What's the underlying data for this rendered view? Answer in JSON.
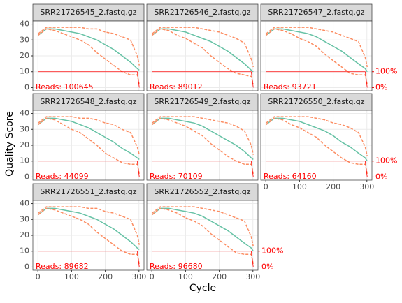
{
  "xlabel": "Cycle",
  "ylabel": "Quality Score",
  "chart_data": [
    {
      "type": "line",
      "title": "SRR21726545_2.fastq.gz",
      "annotation": "Reads:  100645",
      "x": [
        1,
        25,
        50,
        75,
        100,
        125,
        150,
        175,
        200,
        225,
        250,
        275,
        295,
        301
      ],
      "series": [
        {
          "color": "#66c2a5",
          "values": [
            33,
            37,
            37,
            36,
            35,
            34,
            32,
            30,
            27,
            24,
            20,
            16,
            12,
            11
          ]
        },
        {
          "color": "#fc8d62",
          "dashed": true,
          "values": [
            34,
            38,
            38,
            38,
            38,
            38,
            37,
            37,
            35,
            34,
            32,
            30,
            20,
            14
          ]
        },
        {
          "color": "#fc8d62",
          "dashed": true,
          "values": [
            33,
            37,
            36,
            34,
            32,
            30,
            27,
            22,
            18,
            14,
            10,
            8,
            8,
            2
          ]
        },
        {
          "color": "#ff0000",
          "axis": "y2",
          "values": [
            100,
            100,
            100,
            100,
            100,
            100,
            100,
            100,
            100,
            100,
            100,
            100,
            100,
            0
          ]
        }
      ],
      "xlim": [
        -15,
        315
      ],
      "xticks": [
        0,
        100,
        200,
        300
      ],
      "ylim": [
        -2,
        42
      ],
      "yticks": [
        0,
        10,
        20,
        30,
        40
      ],
      "y2lim": [
        -20,
        420
      ]
    },
    {
      "type": "line",
      "title": "SRR21726546_2.fastq.gz",
      "annotation": "Reads:  89012",
      "x": [
        1,
        25,
        50,
        75,
        100,
        125,
        150,
        175,
        200,
        225,
        250,
        275,
        295,
        301
      ],
      "series": [
        {
          "color": "#66c2a5",
          "values": [
            33,
            37,
            37,
            36,
            35,
            33,
            31,
            29,
            26,
            23,
            19,
            15,
            11,
            10
          ]
        },
        {
          "color": "#fc8d62",
          "dashed": true,
          "values": [
            34,
            38,
            38,
            38,
            38,
            38,
            37,
            36,
            35,
            33,
            31,
            28,
            18,
            13
          ]
        },
        {
          "color": "#fc8d62",
          "dashed": true,
          "values": [
            33,
            37,
            36,
            33,
            31,
            28,
            25,
            20,
            16,
            12,
            9,
            8,
            7,
            2
          ]
        },
        {
          "color": "#ff0000",
          "axis": "y2",
          "values": [
            100,
            100,
            100,
            100,
            100,
            100,
            100,
            100,
            100,
            100,
            100,
            100,
            100,
            0
          ]
        }
      ],
      "xlim": [
        -15,
        315
      ],
      "xticks": [
        0,
        100,
        200,
        300
      ],
      "ylim": [
        -2,
        42
      ],
      "yticks": [
        0,
        10,
        20,
        30,
        40
      ],
      "y2lim": [
        -20,
        420
      ]
    },
    {
      "type": "line",
      "title": "SRR21726547_2.fastq.gz",
      "annotation": "Reads:  93721",
      "x": [
        1,
        25,
        50,
        75,
        100,
        125,
        150,
        175,
        200,
        225,
        250,
        275,
        295,
        301
      ],
      "series": [
        {
          "color": "#66c2a5",
          "values": [
            33,
            37,
            37,
            36,
            35,
            34,
            32,
            29,
            26,
            23,
            19,
            15,
            12,
            10
          ]
        },
        {
          "color": "#fc8d62",
          "dashed": true,
          "values": [
            34,
            38,
            38,
            38,
            38,
            38,
            37,
            36,
            35,
            33,
            31,
            29,
            19,
            13
          ]
        },
        {
          "color": "#fc8d62",
          "dashed": true,
          "values": [
            33,
            37,
            36,
            34,
            31,
            29,
            26,
            21,
            17,
            13,
            9,
            8,
            8,
            2
          ]
        },
        {
          "color": "#ff0000",
          "axis": "y2",
          "values": [
            100,
            100,
            100,
            100,
            100,
            100,
            100,
            100,
            100,
            100,
            100,
            100,
            100,
            0
          ]
        }
      ],
      "xlim": [
        -15,
        315
      ],
      "xticks": [
        0,
        100,
        200,
        300
      ],
      "ylim": [
        -2,
        42
      ],
      "yticks": [
        0,
        10,
        20,
        30,
        40
      ],
      "y2lim": [
        -20,
        420
      ],
      "y2ticks": [
        {
          "value": 0,
          "label": "0%"
        },
        {
          "value": 100,
          "label": "100%"
        }
      ]
    },
    {
      "type": "line",
      "title": "SRR21726548_2.fastq.gz",
      "annotation": "Reads:  44099",
      "x": [
        1,
        25,
        50,
        75,
        100,
        125,
        150,
        175,
        200,
        225,
        250,
        275,
        295,
        301
      ],
      "series": [
        {
          "color": "#66c2a5",
          "values": [
            33,
            37,
            37,
            36,
            35,
            33,
            31,
            28,
            25,
            22,
            18,
            15,
            12,
            11
          ]
        },
        {
          "color": "#fc8d62",
          "dashed": true,
          "values": [
            34,
            38,
            38,
            38,
            38,
            37,
            37,
            36,
            34,
            33,
            30,
            28,
            19,
            14
          ]
        },
        {
          "color": "#fc8d62",
          "dashed": true,
          "values": [
            33,
            37,
            36,
            33,
            30,
            28,
            24,
            20,
            15,
            12,
            9,
            8,
            8,
            2
          ]
        },
        {
          "color": "#ff0000",
          "axis": "y2",
          "values": [
            100,
            100,
            100,
            100,
            100,
            100,
            100,
            100,
            100,
            100,
            100,
            100,
            100,
            0
          ]
        }
      ],
      "xlim": [
        -15,
        315
      ],
      "xticks": [
        0,
        100,
        200,
        300
      ],
      "ylim": [
        -2,
        42
      ],
      "yticks": [
        0,
        10,
        20,
        30,
        40
      ],
      "y2lim": [
        -20,
        420
      ]
    },
    {
      "type": "line",
      "title": "SRR21726549_2.fastq.gz",
      "annotation": "Reads:  70109",
      "x": [
        1,
        25,
        50,
        75,
        100,
        125,
        150,
        175,
        200,
        225,
        250,
        275,
        295,
        301
      ],
      "series": [
        {
          "color": "#66c2a5",
          "values": [
            33,
            37,
            37,
            36,
            35,
            34,
            32,
            29,
            26,
            23,
            20,
            16,
            12,
            11
          ]
        },
        {
          "color": "#fc8d62",
          "dashed": true,
          "values": [
            34,
            38,
            38,
            38,
            38,
            38,
            37,
            36,
            35,
            34,
            32,
            29,
            20,
            14
          ]
        },
        {
          "color": "#fc8d62",
          "dashed": true,
          "values": [
            33,
            37,
            36,
            34,
            32,
            29,
            26,
            21,
            17,
            13,
            10,
            8,
            8,
            2
          ]
        },
        {
          "color": "#ff0000",
          "axis": "y2",
          "values": [
            100,
            100,
            100,
            100,
            100,
            100,
            100,
            100,
            100,
            100,
            100,
            100,
            100,
            0
          ]
        }
      ],
      "xlim": [
        -15,
        315
      ],
      "xticks": [
        0,
        100,
        200,
        300
      ],
      "ylim": [
        -2,
        42
      ],
      "yticks": [
        0,
        10,
        20,
        30,
        40
      ],
      "y2lim": [
        -20,
        420
      ]
    },
    {
      "type": "line",
      "title": "SRR21726550_2.fastq.gz",
      "annotation": "Reads:  64160",
      "x": [
        1,
        25,
        50,
        75,
        100,
        125,
        150,
        175,
        200,
        225,
        250,
        275,
        295,
        301
      ],
      "series": [
        {
          "color": "#66c2a5",
          "values": [
            33,
            37,
            37,
            36,
            35,
            33,
            31,
            29,
            26,
            22,
            19,
            15,
            12,
            10
          ]
        },
        {
          "color": "#fc8d62",
          "dashed": true,
          "values": [
            34,
            38,
            38,
            38,
            38,
            38,
            37,
            36,
            34,
            33,
            31,
            28,
            19,
            13
          ]
        },
        {
          "color": "#fc8d62",
          "dashed": true,
          "values": [
            33,
            37,
            36,
            33,
            31,
            28,
            25,
            20,
            16,
            12,
            9,
            8,
            8,
            2
          ]
        },
        {
          "color": "#ff0000",
          "axis": "y2",
          "values": [
            100,
            100,
            100,
            100,
            100,
            100,
            100,
            100,
            100,
            100,
            100,
            100,
            100,
            0
          ]
        }
      ],
      "xlim": [
        -15,
        315
      ],
      "xticks": [
        0,
        100,
        200,
        300
      ],
      "ylim": [
        -2,
        42
      ],
      "yticks": [
        0,
        10,
        20,
        30,
        40
      ],
      "y2lim": [
        -20,
        420
      ],
      "y2ticks": [
        {
          "value": 0,
          "label": "0%"
        },
        {
          "value": 100,
          "label": "100%"
        }
      ]
    },
    {
      "type": "line",
      "title": "SRR21726551_2.fastq.gz",
      "annotation": "Reads:  89682",
      "x": [
        1,
        25,
        50,
        75,
        100,
        125,
        150,
        175,
        200,
        225,
        250,
        275,
        295,
        301
      ],
      "series": [
        {
          "color": "#66c2a5",
          "values": [
            33,
            37,
            37,
            36,
            35,
            34,
            32,
            30,
            27,
            24,
            20,
            16,
            12,
            11
          ]
        },
        {
          "color": "#fc8d62",
          "dashed": true,
          "values": [
            34,
            38,
            38,
            38,
            38,
            38,
            37,
            37,
            35,
            34,
            32,
            30,
            20,
            14
          ]
        },
        {
          "color": "#fc8d62",
          "dashed": true,
          "values": [
            33,
            37,
            36,
            34,
            32,
            30,
            27,
            22,
            18,
            14,
            10,
            8,
            8,
            2
          ]
        },
        {
          "color": "#ff0000",
          "axis": "y2",
          "values": [
            100,
            100,
            100,
            100,
            100,
            100,
            100,
            100,
            100,
            100,
            100,
            100,
            100,
            0
          ]
        }
      ],
      "xlim": [
        -15,
        315
      ],
      "xticks": [
        0,
        100,
        200,
        300
      ],
      "ylim": [
        -2,
        42
      ],
      "yticks": [
        0,
        10,
        20,
        30,
        40
      ],
      "y2lim": [
        -20,
        420
      ]
    },
    {
      "type": "line",
      "title": "SRR21726552_2.fastq.gz",
      "annotation": "Reads:  96680",
      "x": [
        1,
        25,
        50,
        75,
        100,
        125,
        150,
        175,
        200,
        225,
        250,
        275,
        295,
        301
      ],
      "series": [
        {
          "color": "#66c2a5",
          "values": [
            33,
            37,
            37,
            36,
            35,
            34,
            32,
            29,
            26,
            23,
            19,
            15,
            12,
            10
          ]
        },
        {
          "color": "#fc8d62",
          "dashed": true,
          "values": [
            34,
            38,
            38,
            38,
            38,
            38,
            37,
            36,
            35,
            33,
            31,
            29,
            19,
            13
          ]
        },
        {
          "color": "#fc8d62",
          "dashed": true,
          "values": [
            33,
            37,
            36,
            34,
            31,
            29,
            26,
            21,
            17,
            13,
            9,
            8,
            8,
            2
          ]
        },
        {
          "color": "#ff0000",
          "axis": "y2",
          "values": [
            100,
            100,
            100,
            100,
            100,
            100,
            100,
            100,
            100,
            100,
            100,
            100,
            100,
            0
          ]
        }
      ],
      "xlim": [
        -15,
        315
      ],
      "xticks": [
        0,
        100,
        200,
        300
      ],
      "ylim": [
        -2,
        42
      ],
      "yticks": [
        0,
        10,
        20,
        30,
        40
      ],
      "y2lim": [
        -20,
        420
      ],
      "y2ticks": [
        {
          "value": 0,
          "label": "0%"
        },
        {
          "value": 100,
          "label": "100%"
        }
      ]
    }
  ]
}
